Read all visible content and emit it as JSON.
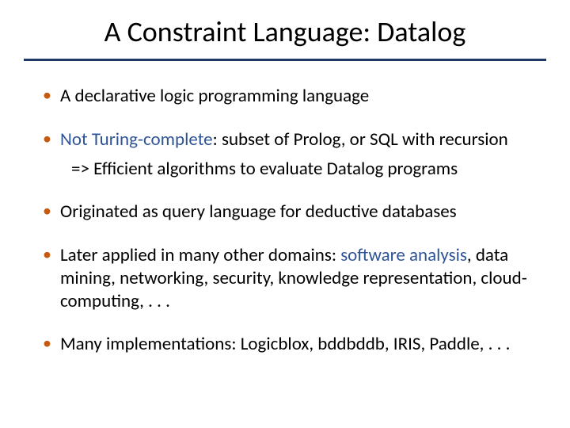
{
  "title": "A Constraint Language: Datalog",
  "colors": {
    "bullet_marker": "#c55a11",
    "rule": "#1f3864",
    "accent": "#2e5496",
    "text": "#000000",
    "background": "#ffffff"
  },
  "typography": {
    "title_fontsize": 36,
    "body_fontsize": 23,
    "font_family": "Calibri"
  },
  "bullets": [
    {
      "pre": "A declarative logic programming language",
      "accent": "",
      "post": "",
      "sub": ""
    },
    {
      "pre": "",
      "accent": "Not Turing-complete",
      "post": ": subset of Prolog, or SQL with recursion",
      "sub": "=> Efficient algorithms to evaluate Datalog programs"
    },
    {
      "pre": "Originated as query language for deductive databases",
      "accent": "",
      "post": "",
      "sub": ""
    },
    {
      "pre": "Later applied in many other domains: ",
      "accent": "software analysis",
      "post": ", data mining, networking, security, knowledge representation, cloud-computing, . . .",
      "sub": ""
    },
    {
      "pre": "Many implementations: Logicblox, bddbddb, IRIS, Paddle, . . .",
      "accent": "",
      "post": "",
      "sub": ""
    }
  ]
}
